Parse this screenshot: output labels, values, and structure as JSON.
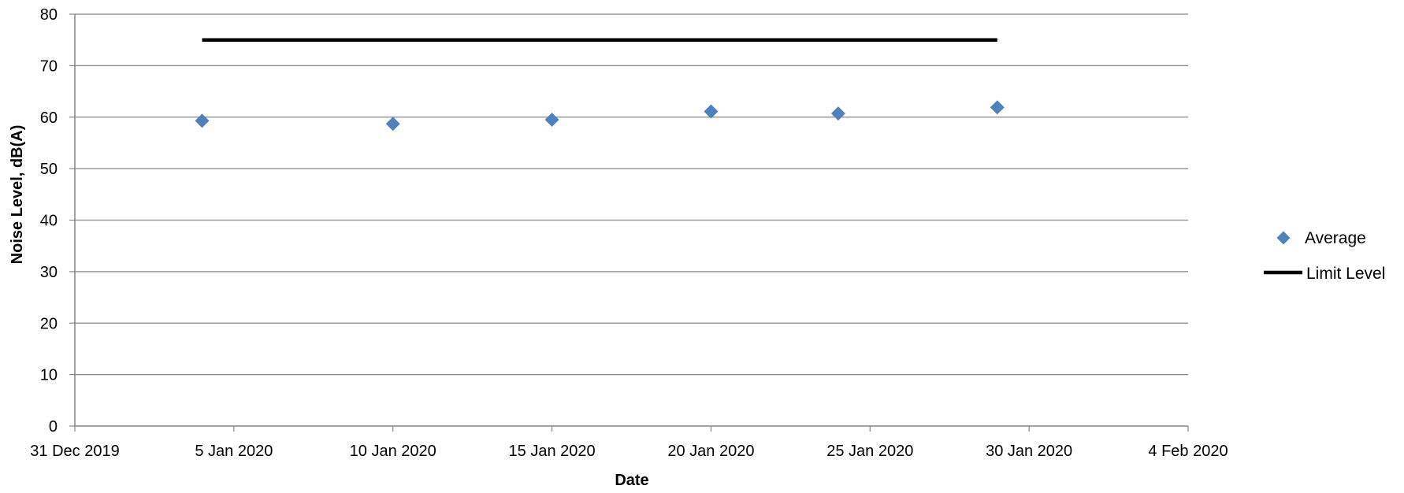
{
  "chart_data": {
    "type": "scatter",
    "title": "",
    "xlabel": "Date",
    "ylabel": "Noise Level, dB(A)",
    "xlim": [
      "2019-12-31",
      "2020-02-04"
    ],
    "ylim": [
      0,
      80
    ],
    "x_ticks": [
      "2019-12-31",
      "2020-01-05",
      "2020-01-10",
      "2020-01-15",
      "2020-01-20",
      "2020-01-25",
      "2020-01-30",
      "2020-02-04"
    ],
    "x_tick_labels": [
      "31 Dec 2019",
      "5 Jan 2020",
      "10 Jan 2020",
      "15 Jan 2020",
      "20 Jan 2020",
      "25 Jan 2020",
      "30 Jan 2020",
      "4 Feb 2020"
    ],
    "y_ticks": [
      0,
      10,
      20,
      30,
      40,
      50,
      60,
      70,
      80
    ],
    "y_tick_labels": [
      "0",
      "10",
      "20",
      "30",
      "40",
      "50",
      "60",
      "70",
      "80"
    ],
    "grid": "horizontal",
    "legend_position": "right",
    "series": [
      {
        "name": "Average",
        "kind": "scatter",
        "marker": "diamond",
        "color": "#4F81BD",
        "x": [
          "2020-01-04",
          "2020-01-10",
          "2020-01-15",
          "2020-01-20",
          "2020-01-24",
          "2020-01-29"
        ],
        "y": [
          59.3,
          58.7,
          59.5,
          61.1,
          60.7,
          61.9
        ]
      },
      {
        "name": "Limit Level",
        "kind": "line",
        "color": "#000000",
        "x": [
          "2020-01-04",
          "2020-01-29"
        ],
        "y": [
          75,
          75
        ]
      }
    ]
  }
}
